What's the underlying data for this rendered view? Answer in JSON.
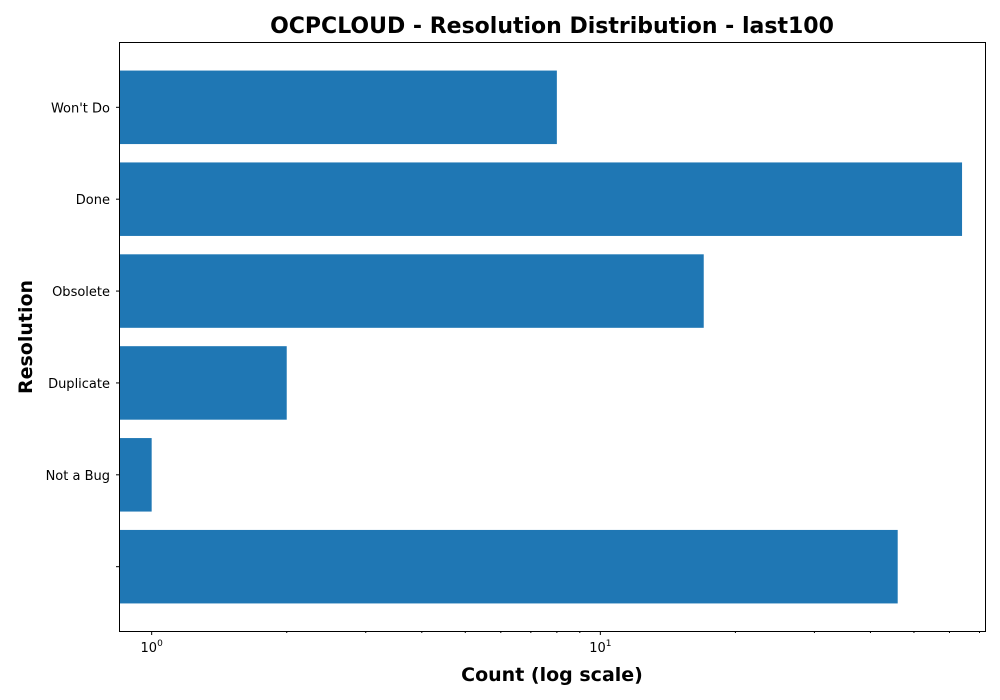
{
  "chart_data": {
    "type": "bar",
    "orientation": "horizontal",
    "title": "OCPCLOUD - Resolution Distribution - last100",
    "xlabel": "Count (log scale)",
    "ylabel": "Resolution",
    "x_scale": "log",
    "xlim": [
      0.85,
      72
    ],
    "categories": [
      "",
      "Not a Bug",
      "Duplicate",
      "Obsolete",
      "Done",
      "Won't Do"
    ],
    "values": [
      46,
      1,
      2,
      17,
      64,
      8
    ],
    "color": "#1f77b4",
    "x_major_ticks": [
      {
        "value": 1,
        "base": "10",
        "exp": "0"
      },
      {
        "value": 10,
        "base": "10",
        "exp": "1"
      }
    ],
    "grid": false,
    "legend": "none"
  }
}
